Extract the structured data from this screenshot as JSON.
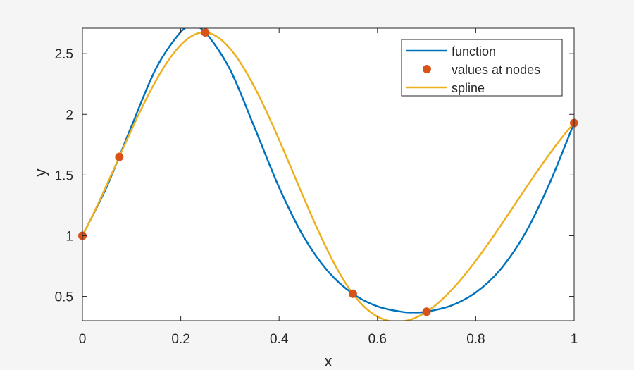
{
  "chart_data": {
    "type": "line",
    "title": "",
    "xlabel": "x",
    "ylabel": "y",
    "xlim": [
      0,
      1
    ],
    "ylim": [
      0.3,
      2.71
    ],
    "xticks": [
      0,
      0.2,
      0.4,
      0.6,
      0.8,
      1
    ],
    "xtick_labels": [
      "0",
      "0.2",
      "0.4",
      "0.6",
      "0.8",
      "1"
    ],
    "yticks": [
      0.5,
      1,
      1.5,
      2,
      2.5
    ],
    "ytick_labels": [
      "0.5",
      "1",
      "1.5",
      "2",
      "2.5"
    ],
    "grid": false,
    "legend_position": "top-right",
    "series": [
      {
        "name": "function",
        "style": "line",
        "color": "#0072BD",
        "x": [
          0,
          0.05,
          0.1,
          0.15,
          0.2,
          0.224,
          0.25,
          0.3,
          0.35,
          0.4,
          0.45,
          0.5,
          0.55,
          0.6,
          0.65,
          0.673,
          0.7,
          0.75,
          0.8,
          0.85,
          0.9,
          0.95,
          1
        ],
        "y": [
          1,
          1.409,
          1.904,
          2.381,
          2.679,
          2.718,
          2.675,
          2.371,
          1.892,
          1.398,
          0.992,
          0.704,
          0.522,
          0.418,
          0.373,
          0.368,
          0.374,
          0.424,
          0.532,
          0.721,
          1.017,
          1.431,
          1.929
        ]
      },
      {
        "name": "values at nodes",
        "style": "markers",
        "color": "#D95319",
        "x": [
          0,
          0.075,
          0.25,
          0.55,
          0.7,
          1
        ],
        "y": [
          1,
          1.65,
          2.675,
          0.522,
          0.374,
          1.929
        ]
      },
      {
        "name": "spline",
        "style": "line",
        "color": "#EDB120",
        "interpolation": "cubic spline (not-a-knot) through nodes"
      }
    ]
  }
}
